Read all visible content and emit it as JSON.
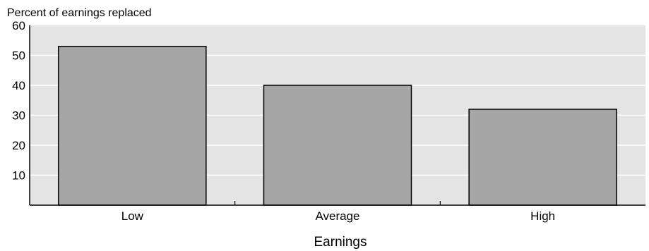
{
  "chart_data": {
    "type": "bar",
    "title": "",
    "ylabel": "Percent of earnings replaced",
    "xlabel": "Earnings",
    "categories": [
      "Low",
      "Average",
      "High"
    ],
    "values": [
      53,
      40,
      32
    ],
    "ylim": [
      0,
      60
    ],
    "yticks": [
      10,
      20,
      30,
      40,
      50,
      60
    ],
    "grid": true,
    "colors": {
      "plot_background": "#e4e4e4",
      "bar_fill": "#a6a6a6",
      "bar_stroke": "#000000",
      "gridline": "#ffffff"
    }
  }
}
